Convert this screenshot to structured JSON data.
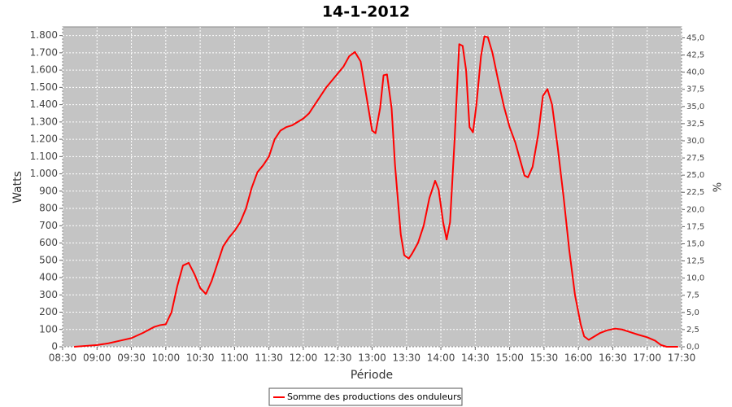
{
  "chart_data": {
    "type": "line",
    "title": "14-1-2012",
    "x_label": "Période",
    "y_label": "Watts",
    "y2_label": "%",
    "x": [
      "08:40",
      "08:50",
      "09:00",
      "09:10",
      "09:20",
      "09:30",
      "09:40",
      "09:50",
      "09:55",
      "10:00",
      "10:05",
      "10:10",
      "10:15",
      "10:20",
      "10:25",
      "10:30",
      "10:35",
      "10:40",
      "10:45",
      "10:50",
      "10:55",
      "11:00",
      "11:05",
      "11:10",
      "11:15",
      "11:20",
      "11:25",
      "11:30",
      "11:35",
      "11:40",
      "11:45",
      "11:50",
      "11:55",
      "12:00",
      "12:05",
      "12:10",
      "12:15",
      "12:20",
      "12:25",
      "12:30",
      "12:35",
      "12:40",
      "12:45",
      "12:50",
      "12:55",
      "13:00",
      "13:03",
      "13:07",
      "13:10",
      "13:13",
      "13:17",
      "13:20",
      "13:25",
      "13:28",
      "13:32",
      "13:35",
      "13:40",
      "13:45",
      "13:50",
      "13:55",
      "13:58",
      "14:02",
      "14:05",
      "14:08",
      "14:12",
      "14:16",
      "14:19",
      "14:22",
      "14:25",
      "14:28",
      "14:31",
      "14:35",
      "14:38",
      "14:41",
      "14:45",
      "14:50",
      "14:55",
      "15:00",
      "15:05",
      "15:10",
      "15:13",
      "15:16",
      "15:20",
      "15:25",
      "15:29",
      "15:33",
      "15:37",
      "15:42",
      "15:47",
      "15:52",
      "15:57",
      "16:02",
      "16:05",
      "16:09",
      "16:14",
      "16:19",
      "16:25",
      "16:32",
      "16:38",
      "16:45",
      "16:52",
      "17:00",
      "17:07",
      "17:12",
      "17:17",
      "17:27"
    ],
    "series": [
      {
        "name": "Somme des productions des onduleurs",
        "color": "#ff0000",
        "values": [
          0,
          5,
          10,
          20,
          35,
          50,
          80,
          115,
          125,
          130,
          200,
          350,
          470,
          485,
          420,
          340,
          305,
          380,
          480,
          580,
          630,
          670,
          720,
          800,
          920,
          1010,
          1050,
          1100,
          1200,
          1250,
          1270,
          1280,
          1300,
          1320,
          1350,
          1400,
          1450,
          1500,
          1540,
          1580,
          1620,
          1680,
          1705,
          1650,
          1450,
          1250,
          1235,
          1380,
          1570,
          1575,
          1380,
          1050,
          650,
          530,
          510,
          540,
          600,
          700,
          860,
          960,
          910,
          720,
          620,
          720,
          1200,
          1750,
          1740,
          1600,
          1270,
          1240,
          1400,
          1680,
          1795,
          1790,
          1700,
          1540,
          1390,
          1270,
          1180,
          1060,
          990,
          980,
          1040,
          1230,
          1450,
          1490,
          1400,
          1150,
          870,
          560,
          300,
          130,
          60,
          40,
          60,
          80,
          95,
          105,
          100,
          85,
          70,
          55,
          35,
          10,
          0,
          0
        ]
      }
    ],
    "xlim": [
      "08:30",
      "17:30"
    ],
    "xticks": [
      "08:30",
      "09:00",
      "09:30",
      "10:00",
      "10:30",
      "11:00",
      "11:30",
      "12:00",
      "12:30",
      "13:00",
      "13:30",
      "14:00",
      "14:30",
      "15:00",
      "15:30",
      "16:00",
      "16:30",
      "17:00",
      "17:30"
    ],
    "ylim": [
      0,
      1850
    ],
    "yticks": [
      0,
      100,
      200,
      300,
      400,
      500,
      600,
      700,
      800,
      900,
      {
        "value": 1000,
        "label": "1.000"
      },
      {
        "value": 1100,
        "label": "1.100"
      },
      {
        "value": 1200,
        "label": "1.200"
      },
      {
        "value": 1300,
        "label": "1.300"
      },
      {
        "value": 1400,
        "label": "1.400"
      },
      {
        "value": 1500,
        "label": "1.500"
      },
      {
        "value": 1600,
        "label": "1.600"
      },
      {
        "value": 1700,
        "label": "1.700"
      },
      {
        "value": 1800,
        "label": "1.800"
      }
    ],
    "y2lim": [
      0,
      46.6
    ],
    "y2ticks": [
      {
        "value": 0,
        "label": "0,0"
      },
      {
        "value": 2.5,
        "label": "2,5"
      },
      {
        "value": 5,
        "label": "5,0"
      },
      {
        "value": 7.5,
        "label": "7,5"
      },
      {
        "value": 10,
        "label": "10,0"
      },
      {
        "value": 12.5,
        "label": "12,5"
      },
      {
        "value": 15,
        "label": "15,0"
      },
      {
        "value": 17.5,
        "label": "17,5"
      },
      {
        "value": 20,
        "label": "20,0"
      },
      {
        "value": 22.5,
        "label": "22,5"
      },
      {
        "value": 25,
        "label": "25,0"
      },
      {
        "value": 27.5,
        "label": "27,5"
      },
      {
        "value": 30,
        "label": "30,0"
      },
      {
        "value": 32.5,
        "label": "32,5"
      },
      {
        "value": 35,
        "label": "35,0"
      },
      {
        "value": 37.5,
        "label": "37,5"
      },
      {
        "value": 40,
        "label": "40,0"
      },
      {
        "value": 42.5,
        "label": "42,5"
      },
      {
        "value": 45,
        "label": "45,0"
      }
    ],
    "grid": true
  }
}
